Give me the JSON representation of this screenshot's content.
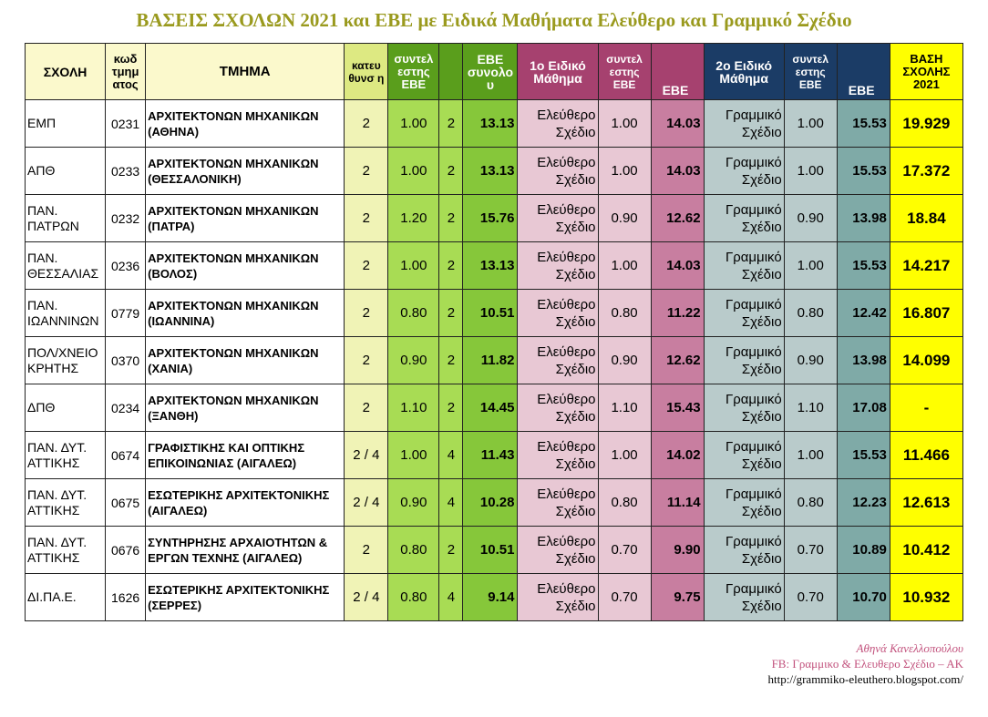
{
  "title": "ΒΑΣΕΙΣ ΣΧΟΛΩΝ 2021 και ΕΒΕ με Ειδικά Μαθήματα Ελεύθερο και Γραμμικό Σχέδιο",
  "headers": {
    "school": "ΣΧΟΛΗ",
    "code": "κωδ τμημ ατος",
    "dept": "ΤΜΗΜΑ",
    "direction": "κατευ θυνσ η",
    "coef": "συντελ εστης ΕΒΕ",
    "ebe_total": "ΕΒΕ συνολο υ",
    "subj1": "1ο Ειδικό Μάθημα",
    "coef1": "συντελ εστης ΕΒΕ",
    "ebe1": "ΕΒΕ",
    "subj2": "2ο Ειδικό Μάθημα",
    "coef2": "συντελ εστης ΕΒΕ",
    "ebe2": "ΕΒΕ",
    "base": "ΒΑΣΗ ΣΧΟΛΗΣ 2021"
  },
  "rows": [
    {
      "school": "ΕΜΠ",
      "code": "0231",
      "dept": "ΑΡΧΙΤΕΚΤΟΝΩΝ ΜΗΧΑΝΙΚΩΝ (ΑΘΗΝΑ)",
      "direction": "2",
      "coef": "1.00",
      "num": "2",
      "ebe": "13.13",
      "subj1": "Ελεύθερο Σχέδιο",
      "coef1": "1.00",
      "ebe1": "14.03",
      "subj2": "Γραμμικό Σχέδιο",
      "coef2": "1.00",
      "ebe2": "15.53",
      "base": "19.929"
    },
    {
      "school": "ΑΠΘ",
      "code": "0233",
      "dept": "ΑΡΧΙΤΕΚΤΟΝΩΝ ΜΗΧΑΝΙΚΩΝ (ΘΕΣΣΑΛΟΝΙΚΗ)",
      "direction": "2",
      "coef": "1.00",
      "num": "2",
      "ebe": "13.13",
      "subj1": "Ελεύθερο Σχέδιο",
      "coef1": "1.00",
      "ebe1": "14.03",
      "subj2": "Γραμμικό Σχέδιο",
      "coef2": "1.00",
      "ebe2": "15.53",
      "base": "17.372"
    },
    {
      "school": "ΠΑΝ. ΠΑΤΡΩΝ",
      "code": "0232",
      "dept": "ΑΡΧΙΤΕΚΤΟΝΩΝ ΜΗΧΑΝΙΚΩΝ (ΠΑΤΡΑ)",
      "direction": "2",
      "coef": "1.20",
      "num": "2",
      "ebe": "15.76",
      "subj1": "Ελεύθερο Σχέδιο",
      "coef1": "0.90",
      "ebe1": "12.62",
      "subj2": "Γραμμικό Σχέδιο",
      "coef2": "0.90",
      "ebe2": "13.98",
      "base": "18.84"
    },
    {
      "school": "ΠΑΝ. ΘΕΣΣΑΛΙΑΣ",
      "code": "0236",
      "dept": "ΑΡΧΙΤΕΚΤΟΝΩΝ ΜΗΧΑΝΙΚΩΝ (ΒΟΛΟΣ)",
      "direction": "2",
      "coef": "1.00",
      "num": "2",
      "ebe": "13.13",
      "subj1": "Ελεύθερο Σχέδιο",
      "coef1": "1.00",
      "ebe1": "14.03",
      "subj2": "Γραμμικό Σχέδιο",
      "coef2": "1.00",
      "ebe2": "15.53",
      "base": "14.217"
    },
    {
      "school": "ΠΑΝ. ΙΩΑΝΝΙΝΩΝ",
      "code": "0779",
      "dept": "ΑΡΧΙΤΕΚΤΟΝΩΝ ΜΗΧΑΝΙΚΩΝ (ΙΩΑΝΝΙΝΑ)",
      "direction": "2",
      "coef": "0.80",
      "num": "2",
      "ebe": "10.51",
      "subj1": "Ελεύθερο Σχέδιο",
      "coef1": "0.80",
      "ebe1": "11.22",
      "subj2": "Γραμμικό Σχέδιο",
      "coef2": "0.80",
      "ebe2": "12.42",
      "base": "16.807"
    },
    {
      "school": "ΠΟΛ/ΧΝΕΙΟ ΚΡΗΤΗΣ",
      "code": "0370",
      "dept": "ΑΡΧΙΤΕΚΤΟΝΩΝ ΜΗΧΑΝΙΚΩΝ (ΧΑΝΙΑ)",
      "direction": "2",
      "coef": "0.90",
      "num": "2",
      "ebe": "11.82",
      "subj1": "Ελεύθερο Σχέδιο",
      "coef1": "0.90",
      "ebe1": "12.62",
      "subj2": "Γραμμικό Σχέδιο",
      "coef2": "0.90",
      "ebe2": "13.98",
      "base": "14.099"
    },
    {
      "school": "ΔΠΘ",
      "code": "0234",
      "dept": "ΑΡΧΙΤΕΚΤΟΝΩΝ ΜΗΧΑΝΙΚΩΝ (ΞΑΝΘΗ)",
      "direction": "2",
      "coef": "1.10",
      "num": "2",
      "ebe": "14.45",
      "subj1": "Ελεύθερο Σχέδιο",
      "coef1": "1.10",
      "ebe1": "15.43",
      "subj2": "Γραμμικό Σχέδιο",
      "coef2": "1.10",
      "ebe2": "17.08",
      "base": "-"
    },
    {
      "school": "ΠΑΝ. ΔΥΤ. ΑΤΤΙΚΗΣ",
      "code": "0674",
      "dept": "ΓΡΑΦΙΣΤΙΚΗΣ ΚΑΙ ΟΠΤΙΚΗΣ ΕΠΙΚΟΙΝΩΝΙΑΣ (ΑΙΓΑΛΕΩ)",
      "direction": "2 / 4",
      "coef": "1.00",
      "num": "4",
      "ebe": "11.43",
      "subj1": "Ελεύθερο Σχέδιο",
      "coef1": "1.00",
      "ebe1": "14.02",
      "subj2": "Γραμμικό Σχέδιο",
      "coef2": "1.00",
      "ebe2": "15.53",
      "base": "11.466"
    },
    {
      "school": "ΠΑΝ. ΔΥΤ. ΑΤΤΙΚΗΣ",
      "code": "0675",
      "dept": "ΕΣΩΤΕΡΙΚΗΣ ΑΡΧΙΤΕΚΤΟΝΙΚΗΣ (ΑΙΓΑΛΕΩ)",
      "direction": "2 / 4",
      "coef": "0.90",
      "num": "4",
      "ebe": "10.28",
      "subj1": "Ελεύθερο Σχέδιο",
      "coef1": "0.80",
      "ebe1": "11.14",
      "subj2": "Γραμμικό Σχέδιο",
      "coef2": "0.80",
      "ebe2": "12.23",
      "base": "12.613"
    },
    {
      "school": "ΠΑΝ. ΔΥΤ. ΑΤΤΙΚΗΣ",
      "code": "0676",
      "dept": "ΣΥΝΤΗΡΗΣΗΣ ΑΡΧΑΙΟΤΗΤΩΝ & ΕΡΓΩΝ ΤΕΧΝΗΣ (ΑΙΓΑΛΕΩ)",
      "direction": "2",
      "coef": "0.80",
      "num": "2",
      "ebe": "10.51",
      "subj1": "Ελεύθερο Σχέδιο",
      "coef1": "0.70",
      "ebe1": "9.90",
      "subj2": "Γραμμικό Σχέδιο",
      "coef2": "0.70",
      "ebe2": "10.89",
      "base": "10.412"
    },
    {
      "school": "ΔΙ.ΠΑ.Ε.",
      "code": "1626",
      "dept": "ΕΣΩΤΕΡΙΚΗΣ ΑΡΧΙΤΕΚΤΟΝΙΚΗΣ (ΣΕΡΡΕΣ)",
      "direction": "2 / 4",
      "coef": "0.80",
      "num": "4",
      "ebe": "9.14",
      "subj1": "Ελεύθερο Σχέδιο",
      "coef1": "0.70",
      "ebe1": "9.75",
      "subj2": "Γραμμικό Σχέδιο",
      "coef2": "0.70",
      "ebe2": "10.70",
      "base": "10.932"
    }
  ],
  "footer": {
    "author": "Αθηνά Κανελλοπούλου",
    "fb": "FB: Γραμμικο & Ελευθερο Σχέδιο – ΑΚ",
    "url": "http://grammiko-eleuthero.blogspot.com/"
  }
}
